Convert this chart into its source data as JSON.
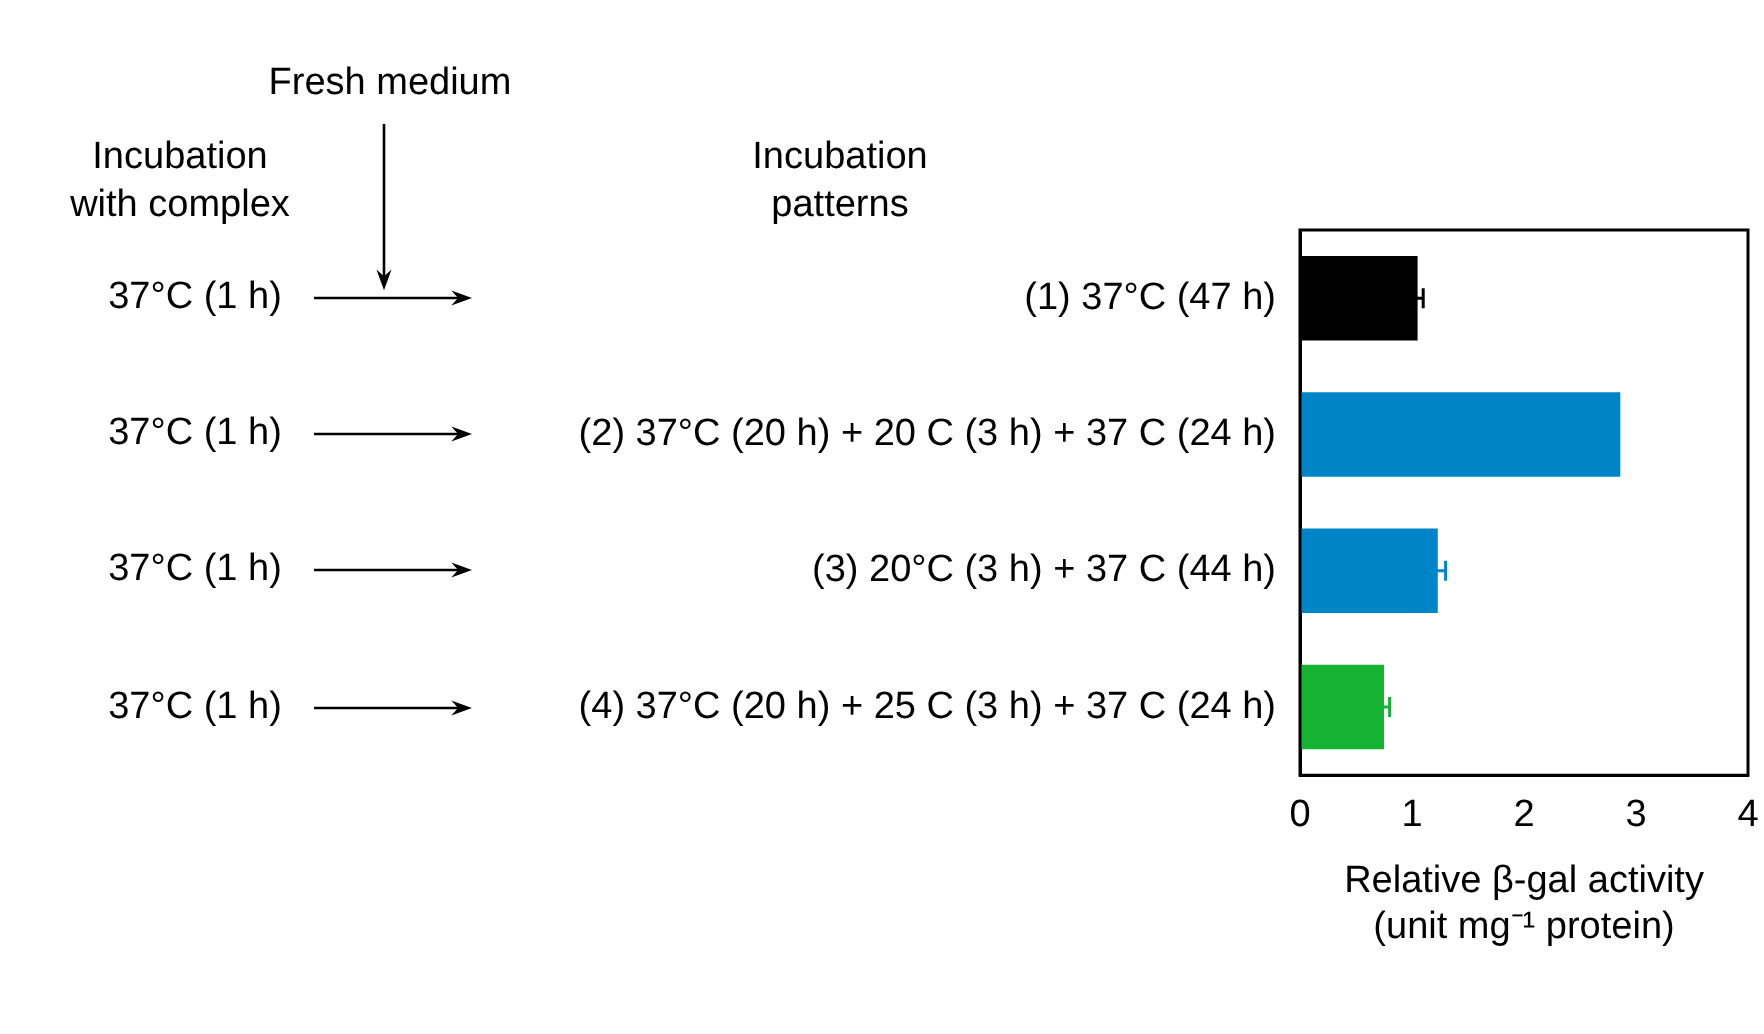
{
  "chart_data": {
    "type": "bar",
    "orientation": "horizontal",
    "categories": [
      "(1) 37°C (47 h)",
      "(2) 37°C (20 h) + 20 C (3 h) + 37 C (24 h)",
      "(3) 20°C (3 h) + 37 C (44 h)",
      "(4) 37°C (20 h) + 25 C (3 h) + 37 C (24 h)"
    ],
    "values": [
      1.05,
      2.86,
      1.23,
      0.75
    ],
    "colors": [
      "#000000",
      "#0084c8",
      "#0084c8",
      "#16b232"
    ],
    "errors": [
      0.05,
      null,
      0.07,
      0.05
    ],
    "xlim": [
      0,
      4
    ],
    "xticks": [
      0,
      1,
      2,
      3,
      4
    ],
    "xlabel": "Relative β-gal activity\n(unit mg⁻¹ protein)",
    "grid": false,
    "legend": false,
    "annotations": [
      "Incubation\nwith complex",
      "Fresh medium",
      "Incubation\npatterns",
      "37°C (1 h)",
      "37°C (1 h)",
      "37°C (1 h)",
      "37°C (1 h)"
    ]
  }
}
